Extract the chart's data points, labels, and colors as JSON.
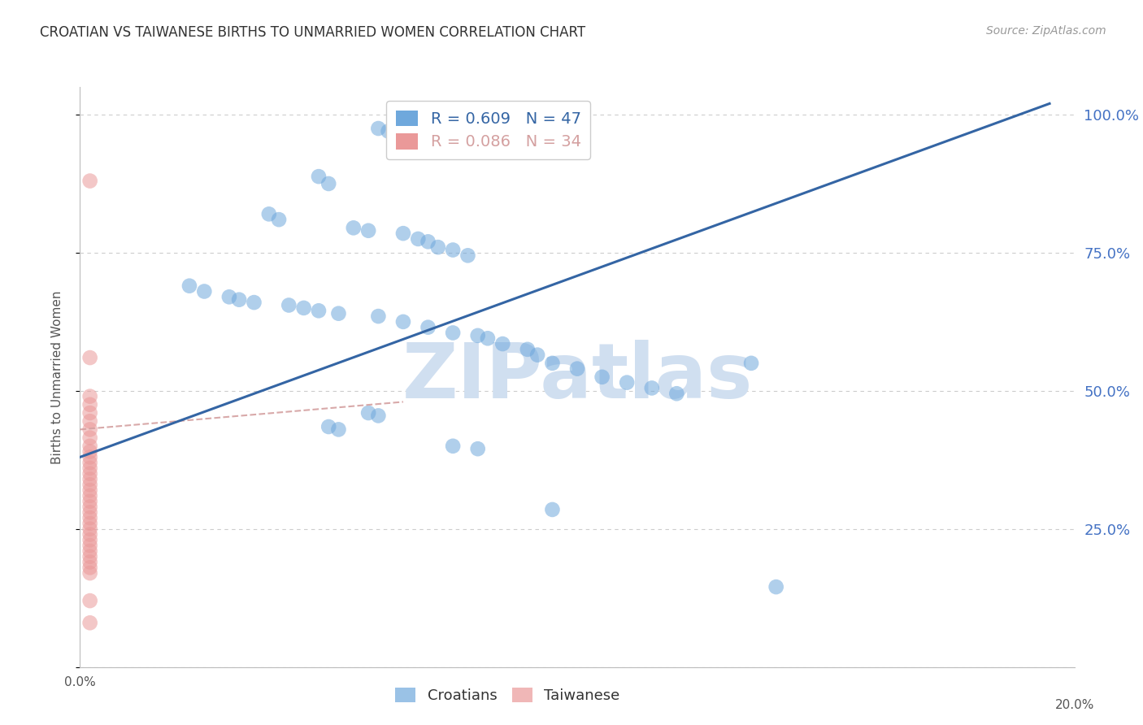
{
  "title": "CROATIAN VS TAIWANESE BIRTHS TO UNMARRIED WOMEN CORRELATION CHART",
  "source": "Source: ZipAtlas.com",
  "ylabel": "Births to Unmarried Women",
  "xlim": [
    0.0,
    0.2
  ],
  "ylim": [
    0.0,
    1.05
  ],
  "ytick_labels": [
    "",
    "25.0%",
    "50.0%",
    "75.0%",
    "100.0%"
  ],
  "ytick_values": [
    0.0,
    0.25,
    0.5,
    0.75,
    1.0
  ],
  "xtick_values": [
    0.0,
    0.02,
    0.04,
    0.06,
    0.08,
    0.1,
    0.12,
    0.14,
    0.16,
    0.18,
    0.2
  ],
  "croatian_R": 0.609,
  "croatian_N": 47,
  "taiwanese_R": 0.086,
  "taiwanese_N": 34,
  "croatian_color": "#6fa8dc",
  "taiwanese_color": "#ea9999",
  "croatian_line_color": "#3465a4",
  "taiwanese_line_color": "#d4a0a0",
  "grid_color": "#cccccc",
  "background_color": "#ffffff",
  "watermark_text": "ZIPatlas",
  "watermark_color": "#d0dff0",
  "right_ytick_color": "#4472c4",
  "croatians_x": [
    0.06,
    0.062,
    0.048,
    0.05,
    0.038,
    0.04,
    0.055,
    0.058,
    0.065,
    0.068,
    0.07,
    0.072,
    0.075,
    0.078,
    0.022,
    0.025,
    0.03,
    0.032,
    0.035,
    0.042,
    0.045,
    0.048,
    0.052,
    0.06,
    0.065,
    0.07,
    0.075,
    0.08,
    0.082,
    0.085,
    0.09,
    0.092,
    0.095,
    0.1,
    0.105,
    0.11,
    0.115,
    0.12,
    0.058,
    0.06,
    0.05,
    0.052,
    0.075,
    0.08,
    0.095,
    0.135,
    0.14
  ],
  "croatians_y": [
    0.975,
    0.97,
    0.888,
    0.875,
    0.82,
    0.81,
    0.795,
    0.79,
    0.785,
    0.775,
    0.77,
    0.76,
    0.755,
    0.745,
    0.69,
    0.68,
    0.67,
    0.665,
    0.66,
    0.655,
    0.65,
    0.645,
    0.64,
    0.635,
    0.625,
    0.615,
    0.605,
    0.6,
    0.595,
    0.585,
    0.575,
    0.565,
    0.55,
    0.54,
    0.525,
    0.515,
    0.505,
    0.495,
    0.46,
    0.455,
    0.435,
    0.43,
    0.4,
    0.395,
    0.285,
    0.55,
    0.145
  ],
  "taiwanese_x": [
    0.002,
    0.002,
    0.002,
    0.002,
    0.002,
    0.002,
    0.002,
    0.002,
    0.002,
    0.002,
    0.002,
    0.002,
    0.002,
    0.002,
    0.002,
    0.002,
    0.002,
    0.002,
    0.002,
    0.002,
    0.002,
    0.002,
    0.002,
    0.002,
    0.002,
    0.002,
    0.002,
    0.002,
    0.002,
    0.002,
    0.002,
    0.002,
    0.002,
    0.002
  ],
  "taiwanese_y": [
    0.88,
    0.56,
    0.49,
    0.475,
    0.46,
    0.445,
    0.43,
    0.415,
    0.4,
    0.39,
    0.38,
    0.37,
    0.36,
    0.35,
    0.34,
    0.33,
    0.32,
    0.31,
    0.3,
    0.29,
    0.28,
    0.27,
    0.26,
    0.25,
    0.24,
    0.23,
    0.22,
    0.21,
    0.2,
    0.19,
    0.18,
    0.17,
    0.12,
    0.08
  ],
  "cr_line_x0": 0.0,
  "cr_line_y0": 0.38,
  "cr_line_x1": 0.195,
  "cr_line_y1": 1.02,
  "tw_line_x0": 0.0,
  "tw_line_y0": 0.43,
  "tw_line_x1": 0.065,
  "tw_line_y1": 0.48
}
